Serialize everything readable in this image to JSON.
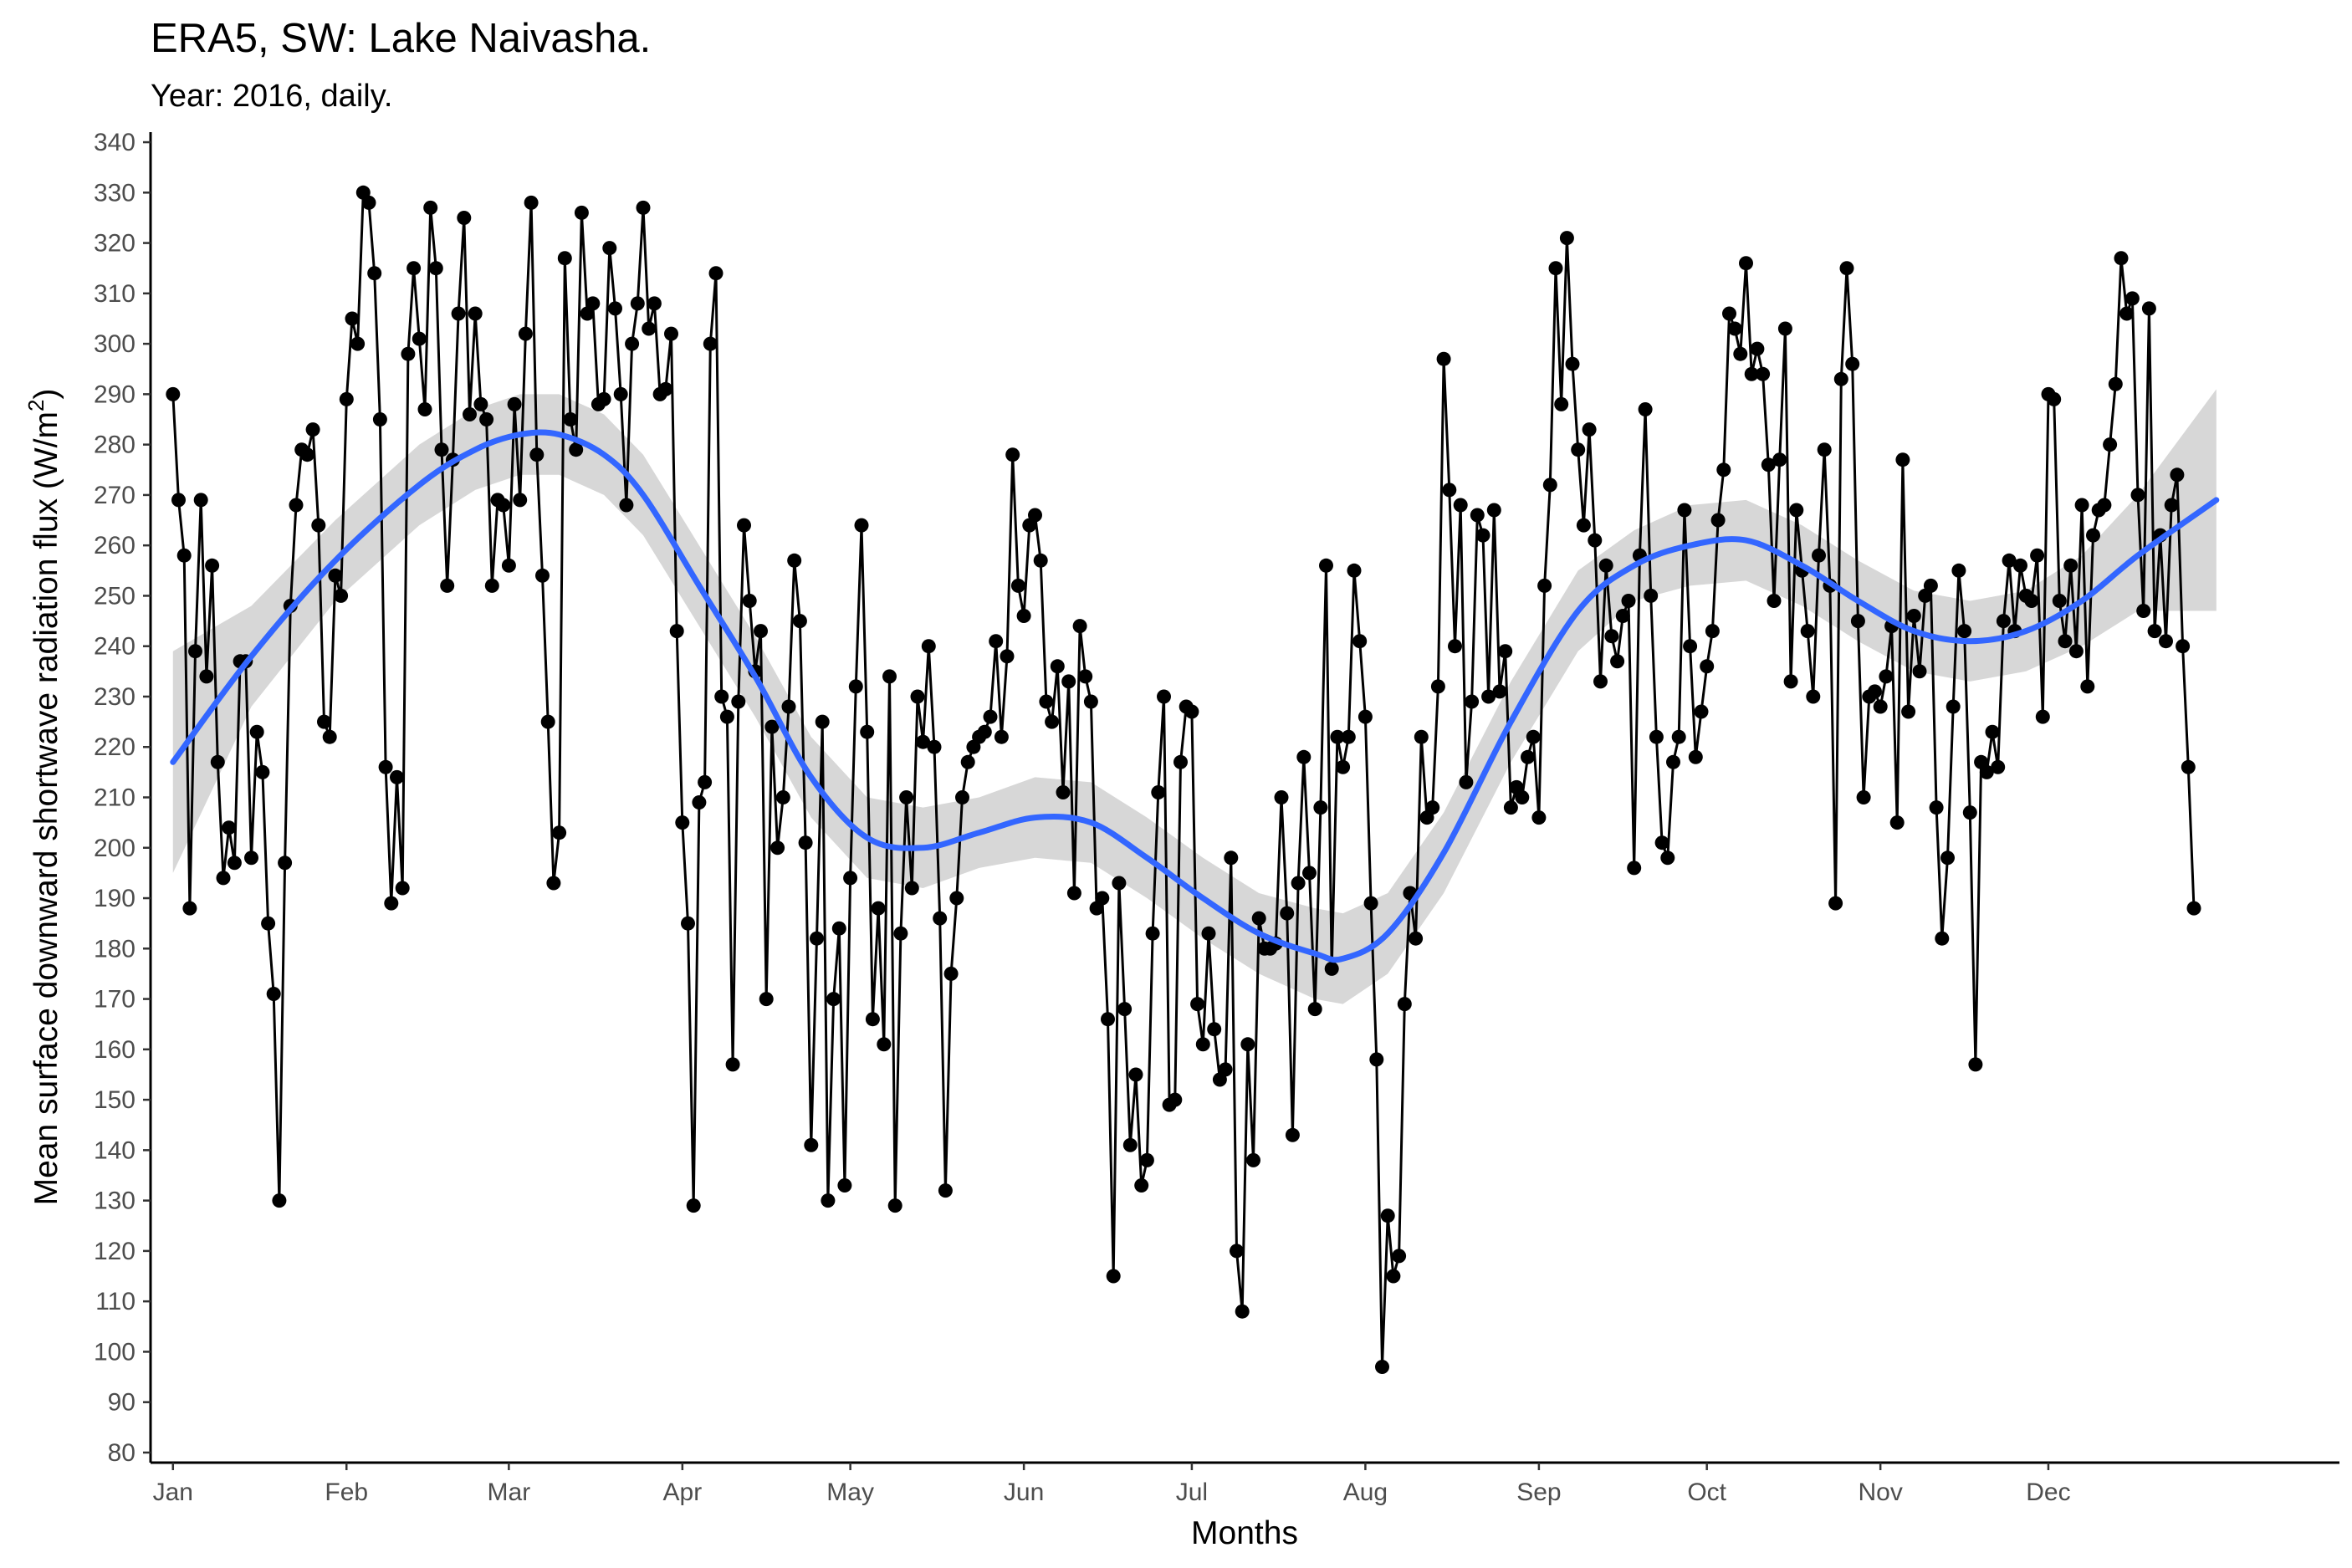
{
  "chart_data": {
    "type": "line",
    "title": "ERA5, SW: Lake Naivasha.",
    "subtitle": "Year: 2016, daily.",
    "xlabel": "Months",
    "ylabel": "Mean surface downward shortwave radiation flux (W/m",
    "ylabel_superscript": "2",
    "ylabel_suffix": ")",
    "x_ticks": [
      {
        "label": "Jan",
        "day": 1
      },
      {
        "label": "Feb",
        "day": 32
      },
      {
        "label": "Mar",
        "day": 61
      },
      {
        "label": "Apr",
        "day": 92
      },
      {
        "label": "May",
        "day": 122
      },
      {
        "label": "Jun",
        "day": 153
      },
      {
        "label": "Jul",
        "day": 183
      },
      {
        "label": "Aug",
        "day": 214
      },
      {
        "label": "Sep",
        "day": 245
      },
      {
        "label": "Oct",
        "day": 275
      },
      {
        "label": "Nov",
        "day": 306
      },
      {
        "label": "Dec",
        "day": 336
      }
    ],
    "xlim": [
      -3,
      388
    ],
    "ylim": [
      78,
      342
    ],
    "y_ticks": [
      80,
      90,
      100,
      110,
      120,
      130,
      140,
      150,
      160,
      170,
      180,
      190,
      200,
      210,
      220,
      230,
      240,
      250,
      260,
      270,
      280,
      290,
      300,
      310,
      320,
      330,
      340
    ],
    "grid": false,
    "legend": "none",
    "series": [
      {
        "kind": "observed daily values",
        "color": "#000000",
        "x_start_day": 1,
        "values": [
          290,
          269,
          258,
          188,
          239,
          269,
          234,
          256,
          217,
          194,
          204,
          197,
          237,
          237,
          198,
          223,
          215,
          185,
          171,
          130,
          197,
          248,
          268,
          279,
          278,
          283,
          264,
          225,
          222,
          254,
          250,
          289,
          305,
          300,
          330,
          328,
          314,
          285,
          216,
          189,
          214,
          192,
          298,
          315,
          301,
          287,
          327,
          315,
          279,
          252,
          277,
          306,
          325,
          286,
          306,
          288,
          285,
          252,
          269,
          268,
          256,
          288,
          269,
          302,
          328,
          278,
          254,
          225,
          193,
          203,
          317,
          285,
          279,
          326,
          306,
          308,
          288,
          289,
          319,
          307,
          290,
          268,
          300,
          308,
          327,
          303,
          308,
          290,
          291,
          302,
          243,
          205,
          185,
          129,
          209,
          213,
          300,
          314,
          230,
          226,
          157,
          229,
          264,
          249,
          235,
          243,
          170,
          224,
          200,
          210,
          228,
          257,
          245,
          201,
          141,
          182,
          225,
          130,
          170,
          184,
          133,
          194,
          232,
          264,
          223,
          166,
          188,
          161,
          234,
          129,
          183,
          210,
          192,
          230,
          221,
          240,
          220,
          186,
          132,
          175,
          190,
          210,
          217,
          220,
          222,
          223,
          226,
          241,
          222,
          238,
          278,
          252,
          246,
          264,
          266,
          257,
          229,
          225,
          236,
          211,
          233,
          191,
          244,
          234,
          229,
          188,
          190,
          166,
          115,
          193,
          168,
          141,
          155,
          133,
          138,
          183,
          211,
          230,
          149,
          150,
          217,
          228,
          227,
          169,
          161,
          183,
          164,
          154,
          156,
          198,
          120,
          108,
          161,
          138,
          186,
          180,
          180,
          181,
          210,
          187,
          143,
          193,
          218,
          195,
          168,
          208,
          256,
          176,
          222,
          216,
          222,
          255,
          241,
          226,
          189,
          158,
          97,
          127,
          115,
          119,
          169,
          191,
          182,
          222,
          206,
          208,
          232,
          297,
          271,
          240,
          268,
          213,
          229,
          266,
          262,
          230,
          267,
          231,
          239,
          208,
          212,
          210,
          218,
          222,
          206,
          252,
          272,
          315,
          288,
          321,
          296,
          279,
          264,
          283,
          261,
          233,
          256,
          242,
          237,
          246,
          249,
          196,
          258,
          287,
          250,
          222,
          201,
          198,
          217,
          222,
          267,
          240,
          218,
          227,
          236,
          243,
          265,
          275,
          306,
          303,
          298,
          316,
          294,
          299,
          294,
          276,
          249,
          277,
          303,
          233,
          267,
          255,
          243,
          230,
          258,
          279,
          252,
          189,
          293,
          315,
          296,
          245,
          210,
          230,
          231,
          228,
          234,
          244,
          205,
          277,
          227,
          246,
          235,
          250,
          252,
          208,
          182,
          198,
          228,
          255,
          243,
          207,
          157,
          217,
          215,
          223,
          216,
          245,
          257,
          243,
          256,
          250,
          249,
          258,
          226,
          290,
          289,
          249,
          241,
          256,
          239,
          268,
          232,
          262,
          267,
          268,
          280,
          292,
          317,
          306,
          309,
          270,
          247,
          307,
          243,
          262,
          241,
          268,
          274,
          240,
          216,
          188
        ]
      },
      {
        "kind": "smoothed trend",
        "color": "#3366ff",
        "band_color": "#bdbdbd",
        "points": [
          {
            "day": 1,
            "fit": 217,
            "lower": 195,
            "upper": 239
          },
          {
            "day": 15,
            "fit": 238,
            "lower": 228,
            "upper": 248
          },
          {
            "day": 30,
            "fit": 257,
            "lower": 249,
            "upper": 265
          },
          {
            "day": 45,
            "fit": 272,
            "lower": 264,
            "upper": 280
          },
          {
            "day": 55,
            "fit": 279,
            "lower": 271,
            "upper": 287
          },
          {
            "day": 63,
            "fit": 282,
            "lower": 274,
            "upper": 290
          },
          {
            "day": 70,
            "fit": 282,
            "lower": 274,
            "upper": 290
          },
          {
            "day": 78,
            "fit": 278,
            "lower": 270,
            "upper": 286
          },
          {
            "day": 85,
            "fit": 270,
            "lower": 262,
            "upper": 278
          },
          {
            "day": 95,
            "fit": 252,
            "lower": 244,
            "upper": 260
          },
          {
            "day": 105,
            "fit": 234,
            "lower": 226,
            "upper": 242
          },
          {
            "day": 115,
            "fit": 214,
            "lower": 206,
            "upper": 222
          },
          {
            "day": 125,
            "fit": 202,
            "lower": 194,
            "upper": 210
          },
          {
            "day": 135,
            "fit": 200,
            "lower": 192,
            "upper": 208
          },
          {
            "day": 145,
            "fit": 203,
            "lower": 196,
            "upper": 210
          },
          {
            "day": 155,
            "fit": 206,
            "lower": 198,
            "upper": 214
          },
          {
            "day": 165,
            "fit": 205,
            "lower": 197,
            "upper": 213
          },
          {
            "day": 175,
            "fit": 198,
            "lower": 190,
            "upper": 206
          },
          {
            "day": 185,
            "fit": 190,
            "lower": 182,
            "upper": 198
          },
          {
            "day": 195,
            "fit": 183,
            "lower": 175,
            "upper": 191
          },
          {
            "day": 205,
            "fit": 179,
            "lower": 170,
            "upper": 188
          },
          {
            "day": 210,
            "fit": 178,
            "lower": 169,
            "upper": 187
          },
          {
            "day": 218,
            "fit": 183,
            "lower": 175,
            "upper": 191
          },
          {
            "day": 228,
            "fit": 199,
            "lower": 191,
            "upper": 207
          },
          {
            "day": 240,
            "fit": 225,
            "lower": 217,
            "upper": 233
          },
          {
            "day": 252,
            "fit": 247,
            "lower": 239,
            "upper": 255
          },
          {
            "day": 262,
            "fit": 256,
            "lower": 249,
            "upper": 263
          },
          {
            "day": 272,
            "fit": 260,
            "lower": 252,
            "upper": 268
          },
          {
            "day": 282,
            "fit": 261,
            "lower": 253,
            "upper": 269
          },
          {
            "day": 292,
            "fit": 256,
            "lower": 248,
            "upper": 264
          },
          {
            "day": 302,
            "fit": 249,
            "lower": 241,
            "upper": 257
          },
          {
            "day": 312,
            "fit": 243,
            "lower": 235,
            "upper": 251
          },
          {
            "day": 322,
            "fit": 241,
            "lower": 233,
            "upper": 249
          },
          {
            "day": 332,
            "fit": 243,
            "lower": 235,
            "upper": 251
          },
          {
            "day": 342,
            "fit": 249,
            "lower": 240,
            "upper": 258
          },
          {
            "day": 352,
            "fit": 258,
            "lower": 247,
            "upper": 270
          },
          {
            "day": 366,
            "fit": 269,
            "lower": 247,
            "upper": 291
          }
        ]
      }
    ]
  }
}
